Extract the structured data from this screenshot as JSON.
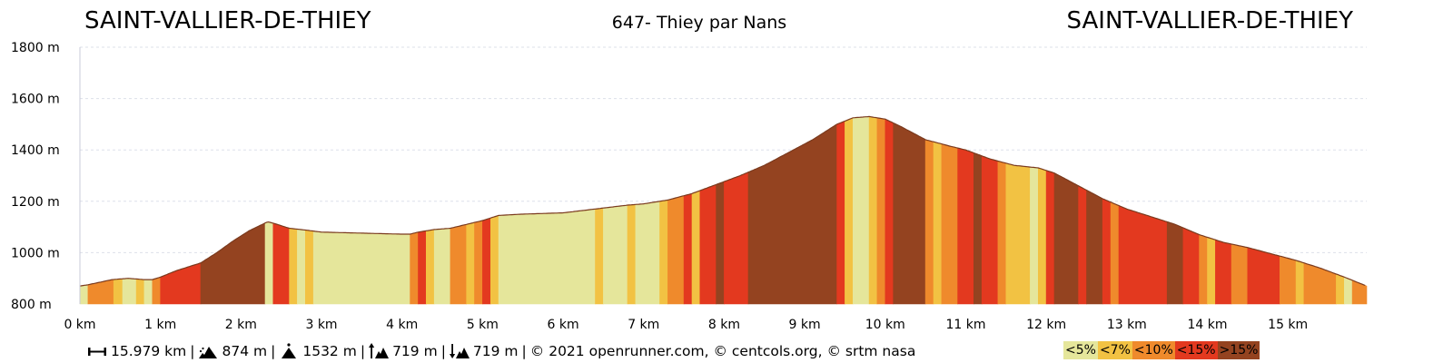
{
  "header": {
    "start_name": "SAINT-VALLIER-DE-THIEY",
    "title": "647- Thiey par Nans",
    "end_name": "SAINT-VALLIER-DE-THIEY"
  },
  "chart_data": {
    "type": "area",
    "title": "647- Thiey par Nans",
    "xlabel": "",
    "ylabel": "",
    "xlim": [
      0,
      15.979
    ],
    "ylim": [
      800,
      1800
    ],
    "x_ticks": [
      0,
      1,
      2,
      3,
      4,
      5,
      6,
      7,
      8,
      9,
      10,
      11,
      12,
      13,
      14,
      15
    ],
    "x_tick_labels": [
      "0 km",
      "1 km",
      "2 km",
      "3 km",
      "4 km",
      "5 km",
      "6 km",
      "7 km",
      "8 km",
      "9 km",
      "10 km",
      "11 km",
      "12 km",
      "13 km",
      "14 km",
      "15 km"
    ],
    "y_ticks": [
      800,
      1000,
      1200,
      1400,
      1600,
      1800
    ],
    "y_tick_labels": [
      "800 m",
      "1000 m",
      "1200 m",
      "1400 m",
      "1600 m",
      "1800 m"
    ],
    "grid": true,
    "legend": "bottom-right",
    "profile": {
      "distance_km": [
        0,
        0.1,
        0.4,
        0.6,
        0.8,
        0.9,
        1.0,
        1.2,
        1.5,
        1.7,
        1.9,
        2.1,
        2.33,
        2.4,
        2.6,
        2.8,
        3.0,
        3.5,
        4.0,
        4.1,
        4.2,
        4.4,
        4.6,
        4.8,
        5.0,
        5.2,
        5.5,
        6.0,
        6.4,
        6.8,
        7.0,
        7.3,
        7.6,
        7.9,
        8.2,
        8.5,
        8.8,
        9.1,
        9.4,
        9.6,
        9.8,
        10.0,
        10.2,
        10.5,
        10.8,
        11.0,
        11.3,
        11.6,
        11.9,
        12.1,
        12.4,
        12.7,
        13.0,
        13.3,
        13.6,
        13.9,
        14.2,
        14.5,
        14.8,
        15.1,
        15.4,
        15.7,
        15.979
      ],
      "elevation_m": [
        870,
        875,
        895,
        900,
        895,
        895,
        905,
        930,
        960,
        1000,
        1045,
        1085,
        1120,
        1115,
        1095,
        1088,
        1080,
        1076,
        1072,
        1072,
        1080,
        1090,
        1095,
        1110,
        1125,
        1145,
        1150,
        1155,
        1170,
        1185,
        1190,
        1205,
        1230,
        1265,
        1300,
        1340,
        1390,
        1440,
        1500,
        1525,
        1530,
        1520,
        1490,
        1440,
        1415,
        1400,
        1365,
        1340,
        1330,
        1310,
        1260,
        1210,
        1170,
        1140,
        1110,
        1070,
        1040,
        1020,
        995,
        970,
        940,
        905,
        870
      ]
    },
    "segments": [
      {
        "from": 0,
        "to": 0.1,
        "cls": 0
      },
      {
        "from": 0.1,
        "to": 0.42,
        "cls": 2
      },
      {
        "from": 0.42,
        "to": 0.53,
        "cls": 1
      },
      {
        "from": 0.53,
        "to": 0.7,
        "cls": 0
      },
      {
        "from": 0.7,
        "to": 0.8,
        "cls": 1
      },
      {
        "from": 0.8,
        "to": 0.9,
        "cls": 0
      },
      {
        "from": 0.9,
        "to": 1.0,
        "cls": 2
      },
      {
        "from": 1.0,
        "to": 1.5,
        "cls": 3
      },
      {
        "from": 1.5,
        "to": 2.3,
        "cls": 4
      },
      {
        "from": 2.3,
        "to": 2.4,
        "cls": 0
      },
      {
        "from": 2.4,
        "to": 2.6,
        "cls": 3
      },
      {
        "from": 2.6,
        "to": 2.7,
        "cls": 1
      },
      {
        "from": 2.7,
        "to": 2.8,
        "cls": 0
      },
      {
        "from": 2.8,
        "to": 2.9,
        "cls": 1
      },
      {
        "from": 2.9,
        "to": 4.1,
        "cls": 0
      },
      {
        "from": 4.1,
        "to": 4.2,
        "cls": 2
      },
      {
        "from": 4.2,
        "to": 4.3,
        "cls": 3
      },
      {
        "from": 4.3,
        "to": 4.4,
        "cls": 1
      },
      {
        "from": 4.4,
        "to": 4.6,
        "cls": 0
      },
      {
        "from": 4.6,
        "to": 4.8,
        "cls": 2
      },
      {
        "from": 4.8,
        "to": 4.9,
        "cls": 1
      },
      {
        "from": 4.9,
        "to": 5.0,
        "cls": 2
      },
      {
        "from": 5.0,
        "to": 5.1,
        "cls": 3
      },
      {
        "from": 5.1,
        "to": 5.2,
        "cls": 1
      },
      {
        "from": 5.2,
        "to": 6.4,
        "cls": 0
      },
      {
        "from": 6.4,
        "to": 6.5,
        "cls": 1
      },
      {
        "from": 6.5,
        "to": 6.8,
        "cls": 0
      },
      {
        "from": 6.8,
        "to": 6.9,
        "cls": 1
      },
      {
        "from": 6.9,
        "to": 7.2,
        "cls": 0
      },
      {
        "from": 7.2,
        "to": 7.3,
        "cls": 1
      },
      {
        "from": 7.3,
        "to": 7.5,
        "cls": 2
      },
      {
        "from": 7.5,
        "to": 7.6,
        "cls": 3
      },
      {
        "from": 7.6,
        "to": 7.7,
        "cls": 1
      },
      {
        "from": 7.7,
        "to": 7.9,
        "cls": 3
      },
      {
        "from": 7.9,
        "to": 8.0,
        "cls": 4
      },
      {
        "from": 8.0,
        "to": 8.3,
        "cls": 3
      },
      {
        "from": 8.3,
        "to": 9.4,
        "cls": 4
      },
      {
        "from": 9.4,
        "to": 9.5,
        "cls": 3
      },
      {
        "from": 9.5,
        "to": 9.6,
        "cls": 1
      },
      {
        "from": 9.6,
        "to": 9.8,
        "cls": 0
      },
      {
        "from": 9.8,
        "to": 9.9,
        "cls": 1
      },
      {
        "from": 9.9,
        "to": 10.0,
        "cls": 2
      },
      {
        "from": 10.0,
        "to": 10.1,
        "cls": 3
      },
      {
        "from": 10.1,
        "to": 10.5,
        "cls": 4
      },
      {
        "from": 10.5,
        "to": 10.6,
        "cls": 2
      },
      {
        "from": 10.6,
        "to": 10.7,
        "cls": 1
      },
      {
        "from": 10.7,
        "to": 10.9,
        "cls": 2
      },
      {
        "from": 10.9,
        "to": 11.1,
        "cls": 3
      },
      {
        "from": 11.1,
        "to": 11.2,
        "cls": 4
      },
      {
        "from": 11.2,
        "to": 11.4,
        "cls": 3
      },
      {
        "from": 11.4,
        "to": 11.5,
        "cls": 2
      },
      {
        "from": 11.5,
        "to": 11.8,
        "cls": 1
      },
      {
        "from": 11.8,
        "to": 11.9,
        "cls": 0
      },
      {
        "from": 11.9,
        "to": 12.0,
        "cls": 1
      },
      {
        "from": 12.0,
        "to": 12.1,
        "cls": 3
      },
      {
        "from": 12.1,
        "to": 12.4,
        "cls": 4
      },
      {
        "from": 12.4,
        "to": 12.5,
        "cls": 3
      },
      {
        "from": 12.5,
        "to": 12.7,
        "cls": 4
      },
      {
        "from": 12.7,
        "to": 12.8,
        "cls": 3
      },
      {
        "from": 12.8,
        "to": 12.9,
        "cls": 2
      },
      {
        "from": 12.9,
        "to": 13.5,
        "cls": 3
      },
      {
        "from": 13.5,
        "to": 13.7,
        "cls": 4
      },
      {
        "from": 13.7,
        "to": 13.9,
        "cls": 3
      },
      {
        "from": 13.9,
        "to": 14.0,
        "cls": 2
      },
      {
        "from": 14.0,
        "to": 14.1,
        "cls": 1
      },
      {
        "from": 14.1,
        "to": 14.3,
        "cls": 3
      },
      {
        "from": 14.3,
        "to": 14.5,
        "cls": 2
      },
      {
        "from": 14.5,
        "to": 14.9,
        "cls": 3
      },
      {
        "from": 14.9,
        "to": 15.1,
        "cls": 2
      },
      {
        "from": 15.1,
        "to": 15.2,
        "cls": 1
      },
      {
        "from": 15.2,
        "to": 15.6,
        "cls": 2
      },
      {
        "from": 15.6,
        "to": 15.7,
        "cls": 1
      },
      {
        "from": 15.7,
        "to": 15.8,
        "cls": 0
      },
      {
        "from": 15.8,
        "to": 15.979,
        "cls": 2
      }
    ]
  },
  "grade_legend": [
    {
      "label": "<5%",
      "color": "#e5e69b"
    },
    {
      "label": "<7%",
      "color": "#f2c243"
    },
    {
      "label": "<10%",
      "color": "#ef8a2c"
    },
    {
      "label": "<15%",
      "color": "#e3391f"
    },
    {
      "label": ">15%",
      "color": "#944320"
    }
  ],
  "footer": {
    "distance": "15.979 km",
    "total_climb": "874 m",
    "max_altitude": "1532 m",
    "ascent": "719 m",
    "descent": "719 m",
    "sep": "|",
    "credits": "© 2021 openrunner.com, © centcols.org, © srtm nasa",
    "icons": [
      "distance-icon",
      "climb-icon",
      "summit-icon",
      "ascent-icon",
      "descent-icon"
    ]
  }
}
